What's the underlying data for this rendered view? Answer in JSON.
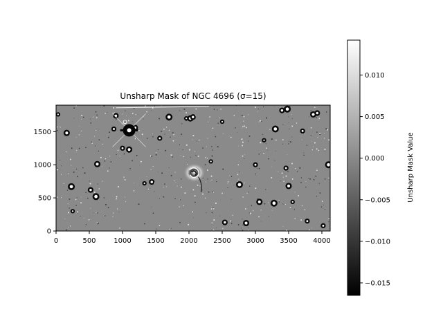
{
  "chart_data": {
    "type": "heatmap",
    "title": "Unsharp Mask of NGC 4696 (σ=15)",
    "xlabel": "",
    "ylabel": "",
    "xlim": [
      0,
      4125
    ],
    "ylim": [
      0,
      1900
    ],
    "xticks": [
      0,
      500,
      1000,
      1500,
      2000,
      2500,
      3000,
      3500,
      4000
    ],
    "yticks": [
      0,
      500,
      1000,
      1500
    ],
    "colormap": "gray",
    "colorbar": {
      "label": "Unsharp Mask Value",
      "range": [
        -0.0165,
        0.0142
      ],
      "ticks": [
        0.01,
        0.005,
        0.0,
        -0.005,
        -0.01,
        -0.015
      ],
      "tick_labels": [
        "0.010",
        "0.005",
        "0.000",
        "−0.005",
        "−0.010",
        "−0.015"
      ]
    },
    "image": {
      "background_level": 0.0,
      "galaxy_center": [
        2080,
        880
      ],
      "bright_star": [
        1100,
        1520
      ],
      "sources": [
        [
          30,
          1760
        ],
        [
          520,
          620
        ],
        [
          600,
          520
        ],
        [
          1000,
          1250
        ],
        [
          1100,
          1230
        ],
        [
          1330,
          720
        ],
        [
          1440,
          740
        ],
        [
          1700,
          1720
        ],
        [
          1560,
          1400
        ],
        [
          2020,
          1700
        ],
        [
          2330,
          1050
        ],
        [
          2540,
          130
        ],
        [
          2760,
          700
        ],
        [
          3000,
          1000
        ],
        [
          3060,
          440
        ],
        [
          3130,
          1370
        ],
        [
          3400,
          1820
        ],
        [
          3480,
          1840
        ],
        [
          3460,
          950
        ],
        [
          3500,
          680
        ],
        [
          3560,
          440
        ],
        [
          3930,
          1780
        ],
        [
          4100,
          1000
        ],
        [
          4020,
          80
        ],
        [
          160,
          1480
        ],
        [
          250,
          300
        ],
        [
          900,
          1740
        ],
        [
          3280,
          420
        ],
        [
          3780,
          150
        ],
        [
          2860,
          120
        ],
        [
          1960,
          1700
        ],
        [
          2060,
          1720
        ],
        [
          230,
          670
        ],
        [
          870,
          1540
        ],
        [
          3870,
          1760
        ],
        [
          2500,
          1650
        ],
        [
          1190,
          1560
        ],
        [
          3300,
          1540
        ],
        [
          3710,
          1510
        ],
        [
          620,
          1010
        ]
      ]
    }
  }
}
